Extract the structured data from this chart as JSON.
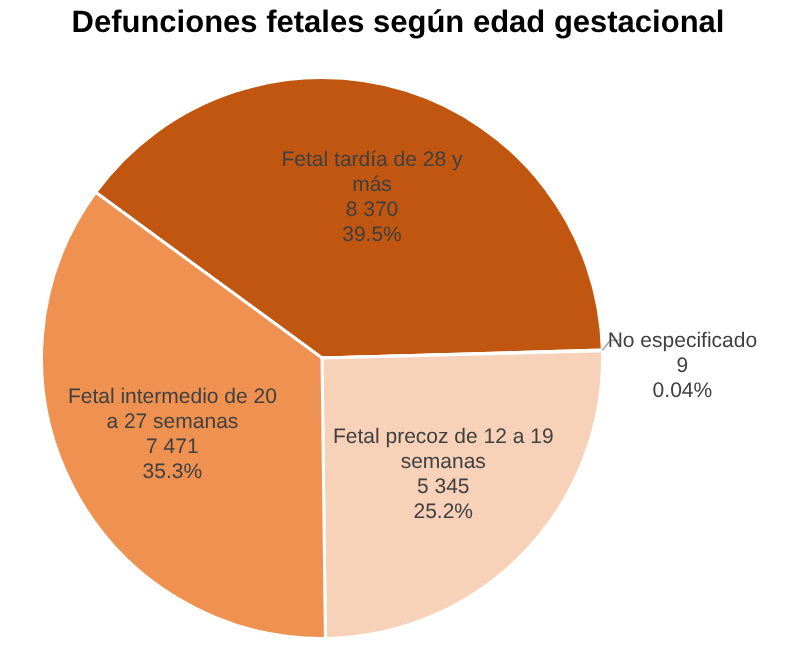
{
  "chart_data": {
    "type": "pie",
    "title": "Defunciones fetales según edad gestacional",
    "categories": [
      "Fetal tardía de 28 y más",
      "No especificado",
      "Fetal precoz de 12 a 19 semanas",
      "Fetal intermedio de 20 a 27 semanas"
    ],
    "values": [
      8370,
      9,
      5345,
      7471
    ],
    "value_labels": [
      "8 370\n39.5%",
      "9\n0.04%",
      "5 345\n25.2%",
      "7 471\n35.3%"
    ],
    "colors": [
      "#c0560f",
      "#7f3b0b",
      "#f8d2b8",
      "#ef9150"
    ]
  }
}
